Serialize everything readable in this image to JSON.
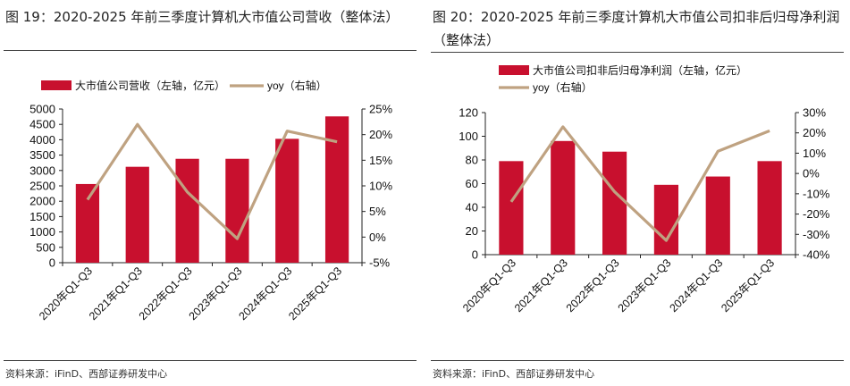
{
  "colors": {
    "bar": "#C8102E",
    "line": "#BFA281",
    "axis": "#222222",
    "rule": "#444444"
  },
  "left": {
    "title": "图 19：2020-2025 年前三季度计算机大市值公司营收（整体法）",
    "source": "资料来源：iFinD、西部证券研发中心"
  },
  "right": {
    "title": "图 20：2020-2025 年前三季度计算机大市值公司扣非后归母净利润（整体法）",
    "source": "资料来源：iFinD、西部证券研发中心"
  },
  "chart_data": [
    {
      "type": "bar",
      "categories": [
        "2020年Q1-Q3",
        "2021年Q1-Q3",
        "2022年Q1-Q3",
        "2023年Q1-Q3",
        "2024年Q1-Q3",
        "2025年Q1-Q3"
      ],
      "series": [
        {
          "name": "大市值公司营收（左轴，亿元）",
          "type": "bar",
          "axis": "left",
          "values": [
            2560,
            3120,
            3380,
            3380,
            4030,
            4760
          ]
        },
        {
          "name": "yoy（右轴）",
          "type": "line",
          "axis": "right",
          "values": [
            7.3,
            22.0,
            8.8,
            -0.3,
            20.7,
            18.6
          ]
        }
      ],
      "ylim_left": [
        0,
        5000
      ],
      "yticks_left": [
        "0",
        "500",
        "1000",
        "1500",
        "2000",
        "2500",
        "3000",
        "3500",
        "4000",
        "4500",
        "5000"
      ],
      "ylim_right": [
        -5,
        25
      ],
      "yticks_right": [
        "-5%",
        "0%",
        "5%",
        "10%",
        "15%",
        "20%",
        "25%"
      ],
      "legend_position": "top"
    },
    {
      "type": "bar",
      "categories": [
        "2020年Q1-Q3",
        "2021年Q1-Q3",
        "2022年Q1-Q3",
        "2023年Q1-Q3",
        "2024年Q1-Q3",
        "2025年Q1-Q3"
      ],
      "series": [
        {
          "name": "大市值公司扣非后归母净利润（左轴，亿元）",
          "type": "bar",
          "axis": "left",
          "values": [
            79,
            96,
            87,
            59,
            66,
            79
          ]
        },
        {
          "name": "yoy（右轴）",
          "type": "line",
          "axis": "right",
          "values": [
            -14,
            23,
            -9,
            -33,
            11,
            21
          ]
        }
      ],
      "ylim_left": [
        0,
        120
      ],
      "yticks_left": [
        "0",
        "20",
        "40",
        "60",
        "80",
        "100",
        "120"
      ],
      "ylim_right": [
        -40,
        30
      ],
      "yticks_right": [
        "-40%",
        "-30%",
        "-20%",
        "-10%",
        "0%",
        "10%",
        "20%",
        "30%"
      ],
      "legend_position": "top"
    }
  ]
}
